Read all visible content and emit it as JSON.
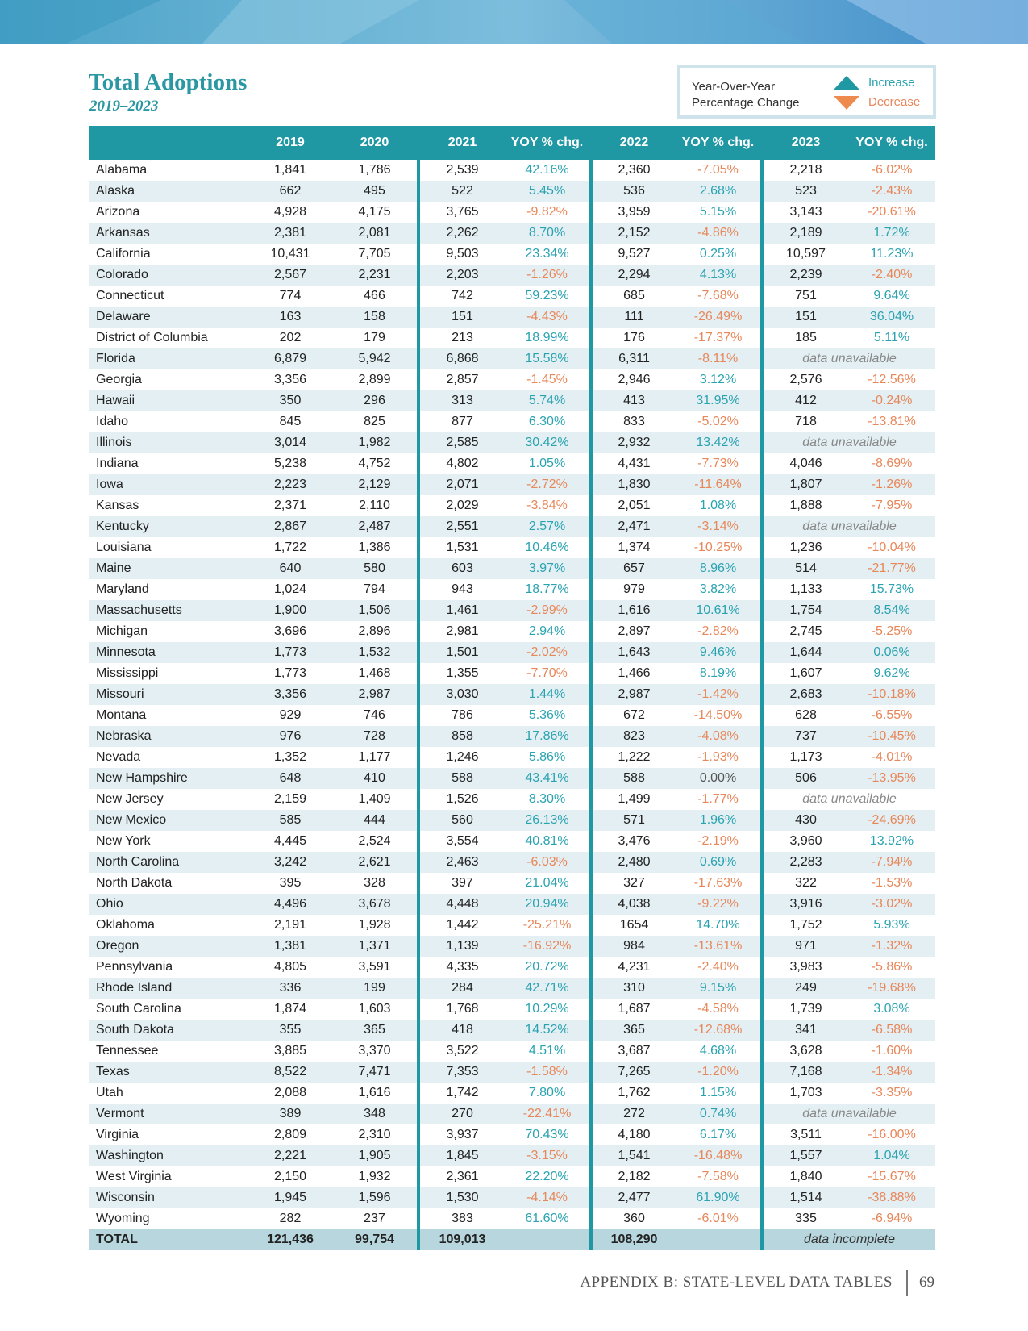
{
  "header": {
    "title": "Total Adoptions",
    "subtitle": "2019–2023"
  },
  "legend": {
    "label": [
      "Year-Over-Year",
      "Percentage Change"
    ],
    "increase": "Increase",
    "decrease": "Decrease"
  },
  "table": {
    "columns": [
      "2019",
      "2020",
      "2021",
      "YOY % chg.",
      "2022",
      "YOY % chg.",
      "2023",
      "YOY % chg."
    ],
    "rows": [
      [
        "Alabama",
        "1,841",
        "1,786",
        "2,539",
        "42.16%",
        "2,360",
        "-7.05%",
        "2,218",
        "-6.02%"
      ],
      [
        "Alaska",
        "662",
        "495",
        "522",
        "5.45%",
        "536",
        "2.68%",
        "523",
        "-2.43%"
      ],
      [
        "Arizona",
        "4,928",
        "4,175",
        "3,765",
        "-9.82%",
        "3,959",
        "5.15%",
        "3,143",
        "-20.61%"
      ],
      [
        "Arkansas",
        "2,381",
        "2,081",
        "2,262",
        "8.70%",
        "2,152",
        "-4.86%",
        "2,189",
        "1.72%"
      ],
      [
        "California",
        "10,431",
        "7,705",
        "9,503",
        "23.34%",
        "9,527",
        "0.25%",
        "10,597",
        "11.23%"
      ],
      [
        "Colorado",
        "2,567",
        "2,231",
        "2,203",
        "-1.26%",
        "2,294",
        "4.13%",
        "2,239",
        "-2.40%"
      ],
      [
        "Connecticut",
        "774",
        "466",
        "742",
        "59.23%",
        "685",
        "-7.68%",
        "751",
        "9.64%"
      ],
      [
        "Delaware",
        "163",
        "158",
        "151",
        "-4.43%",
        "111",
        "-26.49%",
        "151",
        "36.04%"
      ],
      [
        "District of Columbia",
        "202",
        "179",
        "213",
        "18.99%",
        "176",
        "-17.37%",
        "185",
        "5.11%"
      ],
      [
        "Florida",
        "6,879",
        "5,942",
        "6,868",
        "15.58%",
        "6,311",
        "-8.11%",
        "data unavailable"
      ],
      [
        "Georgia",
        "3,356",
        "2,899",
        "2,857",
        "-1.45%",
        "2,946",
        "3.12%",
        "2,576",
        "-12.56%"
      ],
      [
        "Hawaii",
        "350",
        "296",
        "313",
        "5.74%",
        "413",
        "31.95%",
        "412",
        "-0.24%"
      ],
      [
        "Idaho",
        "845",
        "825",
        "877",
        "6.30%",
        "833",
        "-5.02%",
        "718",
        "-13.81%"
      ],
      [
        "Illinois",
        "3,014",
        "1,982",
        "2,585",
        "30.42%",
        "2,932",
        "13.42%",
        "data unavailable"
      ],
      [
        "Indiana",
        "5,238",
        "4,752",
        "4,802",
        "1.05%",
        "4,431",
        "-7.73%",
        "4,046",
        "-8.69%"
      ],
      [
        "Iowa",
        "2,223",
        "2,129",
        "2,071",
        "-2.72%",
        "1,830",
        "-11.64%",
        "1,807",
        "-1.26%"
      ],
      [
        "Kansas",
        "2,371",
        "2,110",
        "2,029",
        "-3.84%",
        "2,051",
        "1.08%",
        "1,888",
        "-7.95%"
      ],
      [
        "Kentucky",
        "2,867",
        "2,487",
        "2,551",
        "2.57%",
        "2,471",
        "-3.14%",
        "data unavailable"
      ],
      [
        "Louisiana",
        "1,722",
        "1,386",
        "1,531",
        "10.46%",
        "1,374",
        "-10.25%",
        "1,236",
        "-10.04%"
      ],
      [
        "Maine",
        "640",
        "580",
        "603",
        "3.97%",
        "657",
        "8.96%",
        "514",
        "-21.77%"
      ],
      [
        "Maryland",
        "1,024",
        "794",
        "943",
        "18.77%",
        "979",
        "3.82%",
        "1,133",
        "15.73%"
      ],
      [
        "Massachusetts",
        "1,900",
        "1,506",
        "1,461",
        "-2.99%",
        "1,616",
        "10.61%",
        "1,754",
        "8.54%"
      ],
      [
        "Michigan",
        "3,696",
        "2,896",
        "2,981",
        "2.94%",
        "2,897",
        "-2.82%",
        "2,745",
        "-5.25%"
      ],
      [
        "Minnesota",
        "1,773",
        "1,532",
        "1,501",
        "-2.02%",
        "1,643",
        "9.46%",
        "1,644",
        "0.06%"
      ],
      [
        "Mississippi",
        "1,773",
        "1,468",
        "1,355",
        "-7.70%",
        "1,466",
        "8.19%",
        "1,607",
        "9.62%"
      ],
      [
        "Missouri",
        "3,356",
        "2,987",
        "3,030",
        "1.44%",
        "2,987",
        "-1.42%",
        "2,683",
        "-10.18%"
      ],
      [
        "Montana",
        "929",
        "746",
        "786",
        "5.36%",
        "672",
        "-14.50%",
        "628",
        "-6.55%"
      ],
      [
        "Nebraska",
        "976",
        "728",
        "858",
        "17.86%",
        "823",
        "-4.08%",
        "737",
        "-10.45%"
      ],
      [
        "Nevada",
        "1,352",
        "1,177",
        "1,246",
        "5.86%",
        "1,222",
        "-1.93%",
        "1,173",
        "-4.01%"
      ],
      [
        "New Hampshire",
        "648",
        "410",
        "588",
        "43.41%",
        "588",
        "0.00%",
        "506",
        "-13.95%"
      ],
      [
        "New Jersey",
        "2,159",
        "1,409",
        "1,526",
        "8.30%",
        "1,499",
        "-1.77%",
        "data unavailable"
      ],
      [
        "New Mexico",
        "585",
        "444",
        "560",
        "26.13%",
        "571",
        "1.96%",
        "430",
        "-24.69%"
      ],
      [
        "New York",
        "4,445",
        "2,524",
        "3,554",
        "40.81%",
        "3,476",
        "-2.19%",
        "3,960",
        "13.92%"
      ],
      [
        "North Carolina",
        "3,242",
        "2,621",
        "2,463",
        "-6.03%",
        "2,480",
        "0.69%",
        "2,283",
        "-7.94%"
      ],
      [
        "North Dakota",
        "395",
        "328",
        "397",
        "21.04%",
        "327",
        "-17.63%",
        "322",
        "-1.53%"
      ],
      [
        "Ohio",
        "4,496",
        "3,678",
        "4,448",
        "20.94%",
        "4,038",
        "-9.22%",
        "3,916",
        "-3.02%"
      ],
      [
        "Oklahoma",
        "2,191",
        "1,928",
        "1,442",
        "-25.21%",
        "1654",
        "14.70%",
        "1,752",
        "5.93%"
      ],
      [
        "Oregon",
        "1,381",
        "1,371",
        "1,139",
        "-16.92%",
        "984",
        "-13.61%",
        "971",
        "-1.32%"
      ],
      [
        "Pennsylvania",
        "4,805",
        "3,591",
        "4,335",
        "20.72%",
        "4,231",
        "-2.40%",
        "3,983",
        "-5.86%"
      ],
      [
        "Rhode Island",
        "336",
        "199",
        "284",
        "42.71%",
        "310",
        "9.15%",
        "249",
        "-19.68%"
      ],
      [
        "South Carolina",
        "1,874",
        "1,603",
        "1,768",
        "10.29%",
        "1,687",
        "-4.58%",
        "1,739",
        "3.08%"
      ],
      [
        "South Dakota",
        "355",
        "365",
        "418",
        "14.52%",
        "365",
        "-12.68%",
        "341",
        "-6.58%"
      ],
      [
        "Tennessee",
        "3,885",
        "3,370",
        "3,522",
        "4.51%",
        "3,687",
        "4.68%",
        "3,628",
        "-1.60%"
      ],
      [
        "Texas",
        "8,522",
        "7,471",
        "7,353",
        "-1.58%",
        "7,265",
        "-1.20%",
        "7,168",
        "-1.34%"
      ],
      [
        "Utah",
        "2,088",
        "1,616",
        "1,742",
        "7.80%",
        "1,762",
        "1.15%",
        "1,703",
        "-3.35%"
      ],
      [
        "Vermont",
        "389",
        "348",
        "270",
        "-22.41%",
        "272",
        "0.74%",
        "data unavailable"
      ],
      [
        "Virginia",
        "2,809",
        "2,310",
        "3,937",
        "70.43%",
        "4,180",
        "6.17%",
        "3,511",
        "-16.00%"
      ],
      [
        "Washington",
        "2,221",
        "1,905",
        "1,845",
        "-3.15%",
        "1,541",
        "-16.48%",
        "1,557",
        "1.04%"
      ],
      [
        "West Virginia",
        "2,150",
        "1,932",
        "2,361",
        "22.20%",
        "2,182",
        "-7.58%",
        "1,840",
        "-15.67%"
      ],
      [
        "Wisconsin",
        "1,945",
        "1,596",
        "1,530",
        "-4.14%",
        "2,477",
        "61.90%",
        "1,514",
        "-38.88%"
      ],
      [
        "Wyoming",
        "282",
        "237",
        "383",
        "61.60%",
        "360",
        "-6.01%",
        "335",
        "-6.94%"
      ]
    ],
    "total": [
      "TOTAL",
      "121,436",
      "99,754",
      "109,013",
      "108,290",
      "data incomplete"
    ]
  },
  "footer": {
    "section": "APPENDIX B: STATE-LEVEL DATA TABLES",
    "page": "69"
  }
}
